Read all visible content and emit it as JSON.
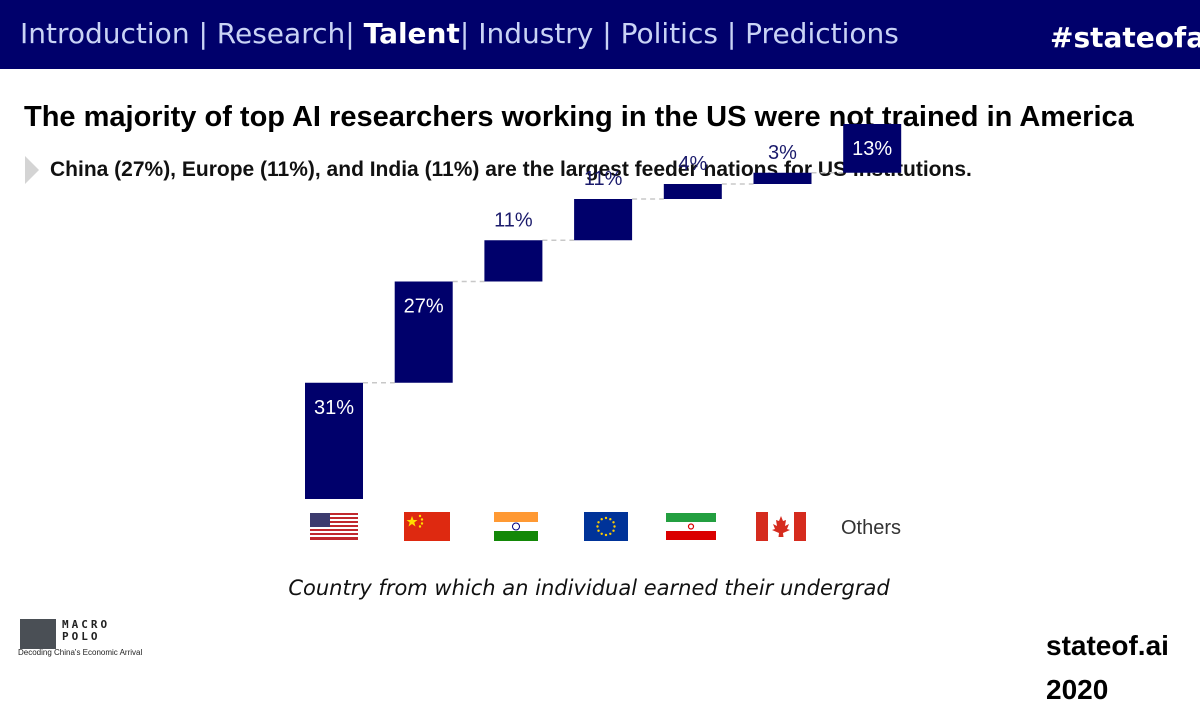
{
  "nav": {
    "items": [
      {
        "label": "Introduction | ",
        "active": false
      },
      {
        "label": "Research",
        "active": false
      },
      {
        "label": "| ",
        "active": false
      },
      {
        "label": "Talent",
        "active": true
      },
      {
        "label": "| Industry | Politics | Predictions",
        "active": false
      }
    ],
    "hashtag": "#stateofai"
  },
  "title": "The majority of top AI researchers working in the US were not trained in America",
  "subtitle": "China (27%), Europe (11%), and India (11%) are the largest feeder nations for US institutions.",
  "chart_data": {
    "type": "waterfall",
    "categories": [
      "United States",
      "China",
      "India",
      "Europe",
      "Iran",
      "Canada",
      "Others"
    ],
    "category_labels": [
      "",
      "",
      "",
      "",
      "",
      "",
      "Others"
    ],
    "values": [
      31,
      27,
      11,
      11,
      4,
      3,
      13
    ],
    "value_labels": [
      "31%",
      "27%",
      "11%",
      "11%",
      "4%",
      "3%",
      "13%"
    ],
    "ylim": [
      0,
      100
    ],
    "xlabel": "Country from which an individual earned their undergrad",
    "bar_color": "#00006b",
    "connector_color": "#c8c8c8"
  },
  "caption": "Country from which an individual earned their undergrad",
  "logo": {
    "name": "MACRO POLO",
    "tagline": "Decoding China's Economic Arrival"
  },
  "brand": "stateof.ai 2020",
  "colors": {
    "header": "#00006b",
    "accent": "#00006b"
  }
}
